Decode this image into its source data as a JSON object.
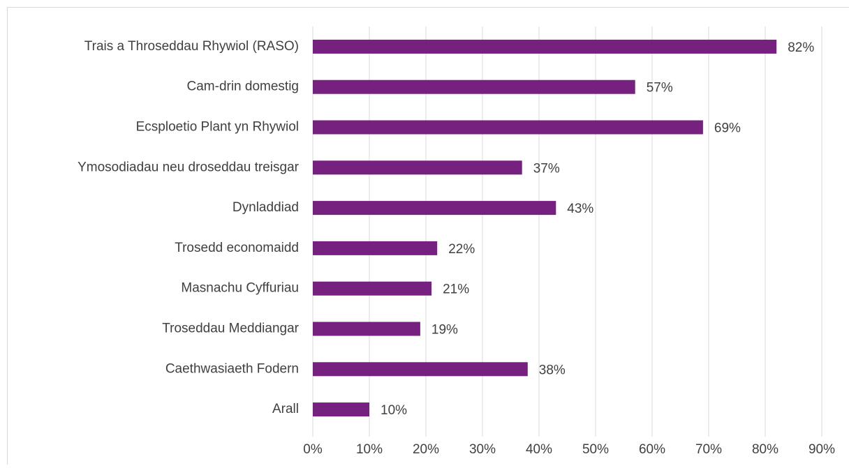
{
  "chart_data": {
    "type": "bar",
    "orientation": "horizontal",
    "categories": [
      "Trais a Throseddau Rhywiol (RASO)",
      "Cam-drin domestig",
      "Ecsploetio Plant yn Rhywiol",
      "Ymosodiadau neu droseddau treisgar",
      "Dynladdiad",
      "Trosedd economaidd",
      "Masnachu Cyffuriau",
      "Troseddau Meddiangar",
      "Caethwasiaeth Fodern",
      "Arall"
    ],
    "values": [
      82,
      57,
      69,
      37,
      43,
      22,
      21,
      19,
      38,
      10
    ],
    "value_labels": [
      "82%",
      "57%",
      "69%",
      "37%",
      "43%",
      "22%",
      "21%",
      "19%",
      "38%",
      "10%"
    ],
    "color": "#76207f",
    "xlim": [
      0,
      90
    ],
    "xticks": [
      {
        "value": 0,
        "label": "0%"
      },
      {
        "value": 10,
        "label": "10%"
      },
      {
        "value": 20,
        "label": "20%"
      },
      {
        "value": 30,
        "label": "30%"
      },
      {
        "value": 40,
        "label": "40%"
      },
      {
        "value": 50,
        "label": "50%"
      },
      {
        "value": 60,
        "label": "60%"
      },
      {
        "value": 70,
        "label": "70%"
      },
      {
        "value": 80,
        "label": "80%"
      },
      {
        "value": 90,
        "label": "90%"
      }
    ],
    "grid": true
  }
}
